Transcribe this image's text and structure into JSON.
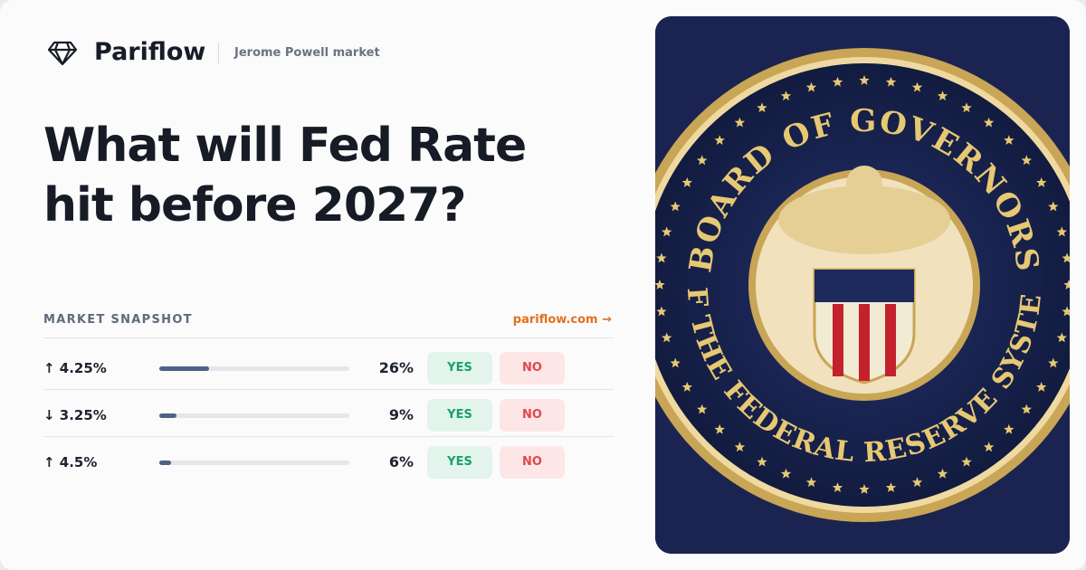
{
  "header": {
    "brand": "Pariflow",
    "subtitle": "Jerome Powell market"
  },
  "title": "What will Fed Rate hit before 2027?",
  "snapshot": {
    "label": "MARKET SNAPSHOT",
    "link": "pariflow.com →",
    "rows": [
      {
        "label": "↑ 4.25%",
        "value": 26,
        "value_label": "26%",
        "yes": "YES",
        "no": "NO"
      },
      {
        "label": "↓ 3.25%",
        "value": 9,
        "value_label": "9%",
        "yes": "YES",
        "no": "NO"
      },
      {
        "label": "↑ 4.5%",
        "value": 6,
        "value_label": "6%",
        "yes": "YES",
        "no": "NO"
      }
    ]
  },
  "seal": {
    "top": "BOARD OF GOVERNORS",
    "bottom": "OF THE FEDERAL RESERVE SYSTEM"
  }
}
